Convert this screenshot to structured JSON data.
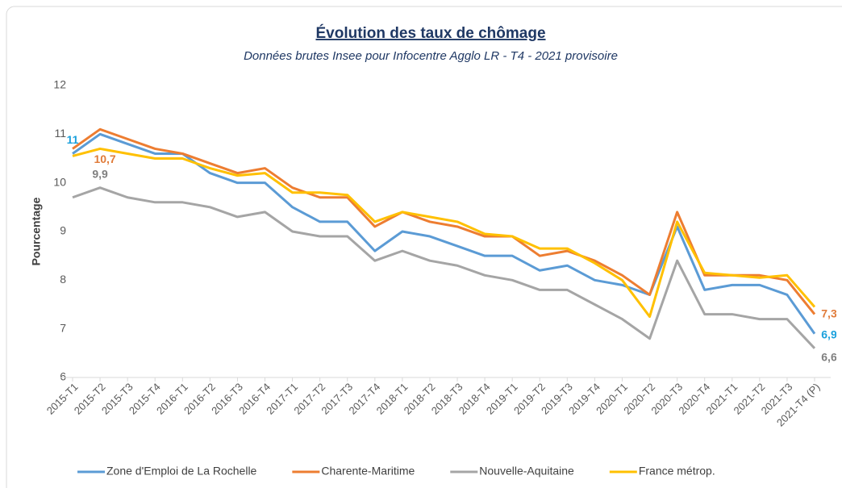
{
  "chart_data": {
    "type": "line",
    "title": "Évolution des taux de chômage",
    "subtitle": "Données brutes Insee pour Infocentre Agglo LR - T4 - 2021 provisoire",
    "y_label": "Pourcentage",
    "categories": [
      "2015-T1",
      "2015-T2",
      "2015-T3",
      "2015-T4",
      "2016-T1",
      "2016-T2",
      "2016-T3",
      "2016-T4",
      "2017-T1",
      "2017-T2",
      "2017-T3",
      "2017-T4",
      "2018-T1",
      "2018-T2",
      "2018-T3",
      "2018-T4",
      "2019-T1",
      "2019-T2",
      "2019-T3",
      "2019-T4",
      "2020-T1",
      "2020-T2",
      "2020-T3",
      "2020-T4",
      "2021-T1",
      "2021-T2",
      "2021-T3",
      "2021-T4 (P)"
    ],
    "ylim": [
      6,
      12
    ],
    "yticks": [
      6,
      7,
      8,
      9,
      10,
      11,
      12
    ],
    "grid": false,
    "legend": "bottom",
    "series": [
      {
        "name": "Zone d'Emploi de La Rochelle",
        "color": "#5b9bd5",
        "label_color": "#1aa0dc",
        "values": [
          10.6,
          11.0,
          10.8,
          10.6,
          10.6,
          10.2,
          10.0,
          10.0,
          9.5,
          9.2,
          9.2,
          8.6,
          9.0,
          8.9,
          8.7,
          8.5,
          8.5,
          8.2,
          8.3,
          8.0,
          7.9,
          7.7,
          9.1,
          7.8,
          7.9,
          7.9,
          7.7,
          6.9
        ],
        "value_labels": [
          "11",
          null,
          null,
          null,
          null,
          null,
          null,
          null,
          null,
          null,
          null,
          null,
          null,
          null,
          null,
          null,
          null,
          null,
          null,
          null,
          null,
          null,
          null,
          null,
          null,
          null,
          null,
          "6,9"
        ]
      },
      {
        "name": "Charente-Maritime",
        "color": "#ed7d31",
        "label_color": "#e07b39",
        "values": [
          10.7,
          11.1,
          10.9,
          10.7,
          10.6,
          10.4,
          10.2,
          10.3,
          9.9,
          9.7,
          9.7,
          9.1,
          9.4,
          9.2,
          9.1,
          8.9,
          8.9,
          8.5,
          8.6,
          8.4,
          8.1,
          7.7,
          9.4,
          8.1,
          8.1,
          8.1,
          8.0,
          7.3
        ],
        "value_labels": [
          null,
          null,
          null,
          null,
          null,
          null,
          null,
          null,
          null,
          null,
          null,
          null,
          null,
          null,
          null,
          null,
          null,
          null,
          null,
          null,
          null,
          null,
          null,
          null,
          null,
          null,
          null,
          "7,3"
        ]
      },
      {
        "name": "Nouvelle-Aquitaine",
        "color": "#a5a5a5",
        "label_color": "#7f7f7f",
        "values": [
          9.7,
          9.9,
          9.7,
          9.6,
          9.6,
          9.5,
          9.3,
          9.4,
          9.0,
          8.9,
          8.9,
          8.4,
          8.6,
          8.4,
          8.3,
          8.1,
          8.0,
          7.8,
          7.8,
          7.5,
          7.2,
          6.8,
          8.4,
          7.3,
          7.3,
          7.2,
          7.2,
          6.6
        ],
        "value_labels": [
          null,
          "9,9",
          null,
          null,
          null,
          null,
          null,
          null,
          null,
          null,
          null,
          null,
          null,
          null,
          null,
          null,
          null,
          null,
          null,
          null,
          null,
          null,
          null,
          null,
          null,
          null,
          null,
          "6,6"
        ]
      },
      {
        "name": "France métrop.",
        "color": "#ffc000",
        "label_color": "#e07b39",
        "values": [
          10.55,
          10.7,
          10.6,
          10.5,
          10.5,
          10.3,
          10.15,
          10.2,
          9.8,
          9.8,
          9.75,
          9.2,
          9.4,
          9.3,
          9.2,
          8.95,
          8.9,
          8.65,
          8.65,
          8.35,
          8.0,
          7.25,
          9.2,
          8.15,
          8.1,
          8.05,
          8.1,
          7.45
        ],
        "value_labels": [
          null,
          "10,7",
          null,
          null,
          null,
          null,
          null,
          null,
          null,
          null,
          null,
          null,
          null,
          null,
          null,
          null,
          null,
          null,
          null,
          null,
          null,
          null,
          null,
          null,
          null,
          null,
          null,
          null
        ]
      }
    ]
  }
}
